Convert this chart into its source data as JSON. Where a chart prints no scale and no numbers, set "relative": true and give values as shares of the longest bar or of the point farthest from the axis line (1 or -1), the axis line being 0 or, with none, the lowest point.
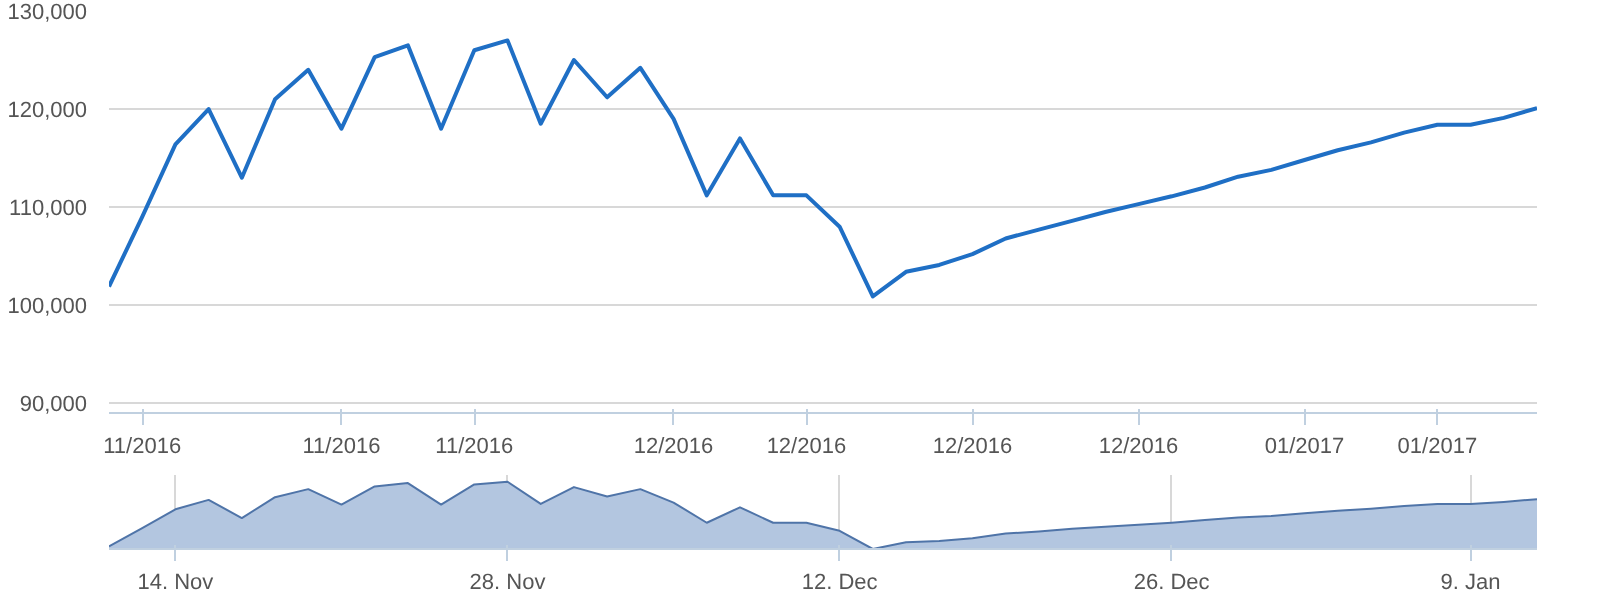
{
  "chart_data": [
    {
      "type": "line",
      "categories": [
        null,
        "11/2016",
        null,
        null,
        null,
        null,
        null,
        "11/2016",
        null,
        null,
        null,
        "11/2016",
        null,
        null,
        null,
        null,
        null,
        "12/2016",
        null,
        null,
        null,
        "12/2016",
        null,
        null,
        null,
        null,
        "12/2016",
        null,
        null,
        null,
        null,
        "12/2016",
        null,
        null,
        null,
        null,
        "01/2017",
        null,
        null,
        null,
        "01/2017",
        null,
        null,
        null
      ],
      "series": [
        {
          "color": "#1f6fc5",
          "values": [
            101900,
            109000,
            116400,
            120000,
            113000,
            121000,
            124000,
            118000,
            125300,
            126500,
            118000,
            126000,
            127000,
            118500,
            125000,
            121200,
            124200,
            119000,
            111200,
            117000,
            111200,
            111200,
            108000,
            100900,
            103400,
            104100,
            105200,
            106800,
            107700,
            108600,
            109500,
            110300,
            111100,
            112000,
            113100,
            113800,
            114800,
            115800,
            116600,
            117600,
            118400,
            118400,
            119100,
            120100
          ]
        }
      ],
      "ylim": [
        89000,
        130000
      ],
      "yticks": [
        {
          "value": 90000,
          "label": "90,000"
        },
        {
          "value": 100000,
          "label": "100,000"
        },
        {
          "value": 110000,
          "label": "110,000"
        },
        {
          "value": 120000,
          "label": "120,000"
        },
        {
          "value": 130000,
          "label": "130,000"
        }
      ],
      "grid": "y",
      "marker": "none",
      "line_style": "solid"
    },
    {
      "type": "area",
      "relative": true,
      "categories": [
        null,
        null,
        "14. Nov",
        null,
        null,
        null,
        null,
        null,
        null,
        null,
        null,
        null,
        "28. Nov",
        null,
        null,
        null,
        null,
        null,
        null,
        null,
        null,
        null,
        "12. Dec",
        null,
        null,
        null,
        null,
        null,
        null,
        null,
        null,
        null,
        "26. Dec",
        null,
        null,
        null,
        null,
        null,
        null,
        null,
        null,
        "9. Jan",
        null,
        null
      ],
      "series": [
        {
          "color": "#b3c6e0",
          "values": [
            0.04,
            0.31,
            0.59,
            0.73,
            0.46,
            0.77,
            0.89,
            0.66,
            0.93,
            0.98,
            0.66,
            0.96,
            1.0,
            0.67,
            0.92,
            0.78,
            0.89,
            0.69,
            0.39,
            0.62,
            0.39,
            0.39,
            0.27,
            0,
            0.1,
            0.12,
            0.16,
            0.23,
            0.26,
            0.3,
            0.33,
            0.36,
            0.39,
            0.43,
            0.47,
            0.49,
            0.53,
            0.57,
            0.6,
            0.64,
            0.67,
            0.67,
            0.7,
            0.74
          ]
        }
      ],
      "grid": "x"
    }
  ]
}
